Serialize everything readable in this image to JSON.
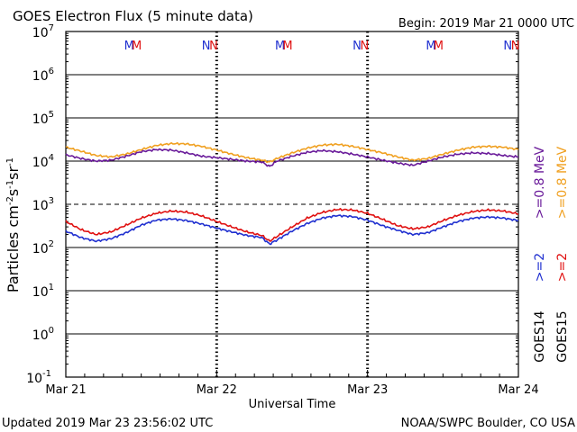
{
  "header": {
    "title": "GOES Electron Flux (5 minute data)",
    "begin": "Begin: 2019 Mar 21 0000 UTC"
  },
  "footer": {
    "updated": "Updated 2019 Mar 23 23:56:02 UTC",
    "credit": "NOAA/SWPC Boulder, CO USA"
  },
  "colors": {
    "goes14_low": "#6a1b9a",
    "goes15_low": "#f0a020",
    "goes14_high": "#2030d0",
    "goes15_high": "#e01010",
    "magnetopause_m": [
      "#2030d0",
      "#e01010"
    ],
    "midnight_n": [
      "#2030d0",
      "#e01010"
    ]
  },
  "right_labels": {
    "goes15": ">=0.8 MeV",
    "goes14": ">=0.8 MeV",
    "goes15_high": ">=2",
    "goes14_high": ">=2",
    "sat15": "GOES15",
    "sat14": "GOES14"
  },
  "chart_data": {
    "type": "line",
    "title": "GOES Electron Flux (5 minute data)",
    "xlabel": "Universal Time",
    "ylabel": "Particles cm-2s-1sr-1",
    "y_scale": "log",
    "ylim": [
      0.1,
      10000000
    ],
    "y_ticks": [
      "10",
      "10",
      "10",
      "10",
      "10",
      "10",
      "10",
      "10",
      "10"
    ],
    "y_tick_exponents": [
      "7",
      "6",
      "5",
      "4",
      "3",
      "2",
      "1",
      "0",
      "-1"
    ],
    "x_ticks": [
      "Mar 21",
      "Mar 22",
      "Mar 23",
      "Mar 24"
    ],
    "xlim_days": [
      0,
      3
    ],
    "threshold": 1000,
    "mn_markers": [
      {
        "day": 0.42,
        "label": "M",
        "satellite": "GOES14"
      },
      {
        "day": 0.47,
        "label": "M",
        "satellite": "GOES15"
      },
      {
        "day": 0.93,
        "label": "N",
        "satellite": "GOES14"
      },
      {
        "day": 0.98,
        "label": "N",
        "satellite": "GOES15"
      },
      {
        "day": 1.42,
        "label": "M",
        "satellite": "GOES14"
      },
      {
        "day": 1.47,
        "label": "M",
        "satellite": "GOES15"
      },
      {
        "day": 1.93,
        "label": "N",
        "satellite": "GOES14"
      },
      {
        "day": 1.98,
        "label": "N",
        "satellite": "GOES15"
      },
      {
        "day": 2.42,
        "label": "M",
        "satellite": "GOES14"
      },
      {
        "day": 2.47,
        "label": "M",
        "satellite": "GOES15"
      },
      {
        "day": 2.93,
        "label": "N",
        "satellite": "GOES14"
      },
      {
        "day": 2.98,
        "label": "N",
        "satellite": "GOES15"
      }
    ],
    "series": [
      {
        "name": "GOES15 >=0.8 MeV",
        "x": [
          0.0,
          0.1,
          0.2,
          0.3,
          0.4,
          0.5,
          0.6,
          0.7,
          0.8,
          0.9,
          1.0,
          1.1,
          1.2,
          1.3,
          1.35,
          1.4,
          1.5,
          1.6,
          1.7,
          1.8,
          1.9,
          2.0,
          2.1,
          2.2,
          2.3,
          2.4,
          2.5,
          2.6,
          2.7,
          2.8,
          2.9,
          3.0
        ],
        "values": [
          21000,
          17000,
          13500,
          12500,
          14500,
          18500,
          23000,
          25500,
          25000,
          22000,
          18000,
          14500,
          12000,
          10500,
          9500,
          11500,
          15500,
          20000,
          23500,
          24500,
          22000,
          18500,
          15500,
          12500,
          10500,
          11500,
          14500,
          18000,
          21000,
          22000,
          21000,
          18500
        ]
      },
      {
        "name": "GOES14 >=0.8 MeV",
        "x": [
          0.0,
          0.1,
          0.2,
          0.3,
          0.4,
          0.5,
          0.6,
          0.7,
          0.8,
          0.9,
          1.0,
          1.1,
          1.2,
          1.3,
          1.35,
          1.4,
          1.5,
          1.6,
          1.7,
          1.8,
          1.9,
          2.0,
          2.1,
          2.2,
          2.3,
          2.4,
          2.5,
          2.6,
          2.7,
          2.8,
          2.9,
          3.0
        ],
        "values": [
          14000,
          11500,
          10000,
          10500,
          13000,
          16500,
          18500,
          18000,
          15500,
          13000,
          12000,
          11000,
          10000,
          9500,
          7500,
          10000,
          13000,
          16000,
          17500,
          16500,
          14500,
          12500,
          10500,
          9000,
          8000,
          10000,
          12500,
          14500,
          15500,
          15000,
          13500,
          12500
        ]
      },
      {
        "name": "GOES15 >=2",
        "x": [
          0.0,
          0.1,
          0.2,
          0.3,
          0.4,
          0.5,
          0.6,
          0.7,
          0.8,
          0.9,
          1.0,
          1.1,
          1.2,
          1.3,
          1.35,
          1.4,
          1.5,
          1.6,
          1.7,
          1.8,
          1.9,
          2.0,
          2.1,
          2.2,
          2.3,
          2.4,
          2.5,
          2.6,
          2.7,
          2.8,
          2.9,
          3.0
        ],
        "values": [
          400,
          260,
          200,
          230,
          330,
          480,
          620,
          700,
          660,
          540,
          400,
          300,
          230,
          190,
          140,
          180,
          300,
          480,
          650,
          760,
          740,
          620,
          450,
          320,
          270,
          300,
          420,
          560,
          680,
          740,
          700,
          600
        ]
      },
      {
        "name": "GOES14 >=2",
        "x": [
          0.0,
          0.1,
          0.2,
          0.3,
          0.4,
          0.5,
          0.6,
          0.7,
          0.8,
          0.9,
          1.0,
          1.1,
          1.2,
          1.3,
          1.35,
          1.4,
          1.5,
          1.6,
          1.7,
          1.8,
          1.9,
          2.0,
          2.1,
          2.2,
          2.3,
          2.4,
          2.5,
          2.6,
          2.7,
          2.8,
          2.9,
          3.0
        ],
        "values": [
          240,
          170,
          140,
          160,
          220,
          330,
          430,
          460,
          420,
          350,
          280,
          230,
          190,
          170,
          120,
          150,
          240,
          360,
          480,
          550,
          520,
          430,
          320,
          250,
          200,
          220,
          300,
          400,
          480,
          510,
          480,
          420
        ]
      }
    ]
  }
}
